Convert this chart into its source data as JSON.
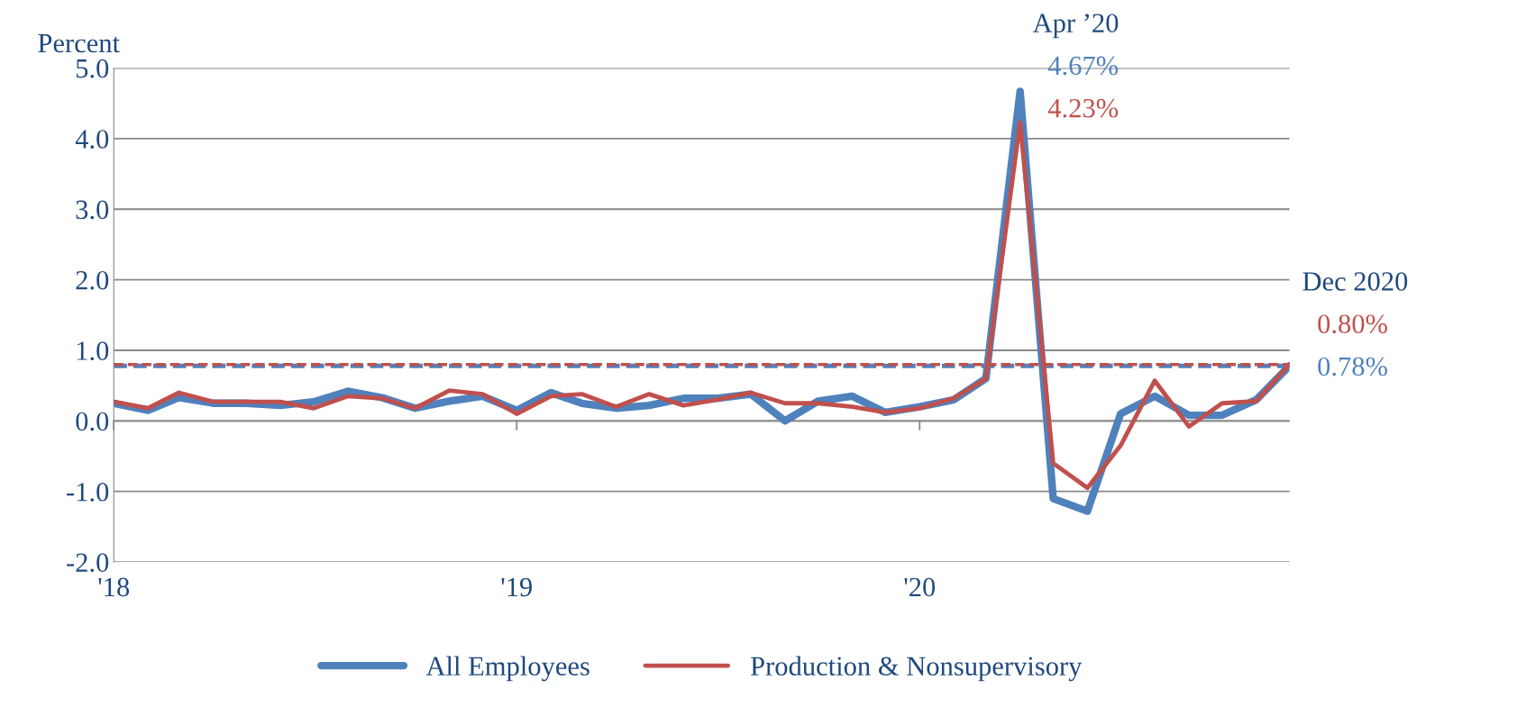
{
  "chart_data": {
    "type": "line",
    "ylabel": "Percent",
    "x": [
      "2018-01",
      "2018-02",
      "2018-03",
      "2018-04",
      "2018-05",
      "2018-06",
      "2018-07",
      "2018-08",
      "2018-09",
      "2018-10",
      "2018-11",
      "2018-12",
      "2019-01",
      "2019-02",
      "2019-03",
      "2019-04",
      "2019-05",
      "2019-06",
      "2019-07",
      "2019-08",
      "2019-09",
      "2019-10",
      "2019-11",
      "2019-12",
      "2020-01",
      "2020-02",
      "2020-03",
      "2020-04",
      "2020-05",
      "2020-06",
      "2020-07",
      "2020-08",
      "2020-09",
      "2020-10",
      "2020-11",
      "2020-12"
    ],
    "series": [
      {
        "name": "All Employees",
        "color": "#4f81bd",
        "values": [
          0.25,
          0.15,
          0.33,
          0.25,
          0.25,
          0.22,
          0.27,
          0.42,
          0.33,
          0.18,
          0.28,
          0.35,
          0.15,
          0.4,
          0.25,
          0.18,
          0.22,
          0.32,
          0.32,
          0.38,
          0.0,
          0.28,
          0.35,
          0.12,
          0.2,
          0.3,
          0.6,
          4.67,
          -1.1,
          -1.28,
          0.1,
          0.35,
          0.08,
          0.08,
          0.3,
          0.78
        ]
      },
      {
        "name": "Production & Nonsupervisory",
        "color": "#c0504d",
        "values": [
          0.27,
          0.18,
          0.4,
          0.27,
          0.27,
          0.27,
          0.18,
          0.35,
          0.32,
          0.18,
          0.43,
          0.38,
          0.1,
          0.35,
          0.38,
          0.2,
          0.38,
          0.22,
          0.3,
          0.4,
          0.25,
          0.25,
          0.2,
          0.12,
          0.18,
          0.32,
          0.6,
          4.23,
          -0.6,
          -0.95,
          -0.35,
          0.57,
          -0.08,
          0.25,
          0.28,
          0.8
        ]
      }
    ],
    "ref_lines": [
      {
        "axis": "y",
        "value": 0.78,
        "color": "#4f81bd",
        "line_style": "dashed"
      },
      {
        "axis": "y",
        "value": 0.8,
        "color": "#c0504d",
        "line_style": "dashed"
      }
    ],
    "annotations": [
      "Apr ’20",
      {
        "text": "4.67%",
        "x": "2020-04",
        "y": 4.67
      },
      {
        "text": "4.23%",
        "x": "2020-04",
        "y": 4.23
      },
      "Dec 2020",
      {
        "text": "0.80%",
        "x": "2020-12",
        "y": 0.8
      },
      {
        "text": "0.78%",
        "x": "2020-12",
        "y": 0.78
      }
    ],
    "xlim": [
      "2018-01",
      "2020-12"
    ],
    "xticks": [
      {
        "value": "2018-01",
        "label": "'18"
      },
      {
        "value": "2019-01",
        "label": "'19"
      },
      {
        "value": "2020-01",
        "label": "'20"
      }
    ],
    "ylim": [
      -2.0,
      5.0
    ],
    "yticks": [
      {
        "value": -2.0,
        "label": "-2.0"
      },
      {
        "value": -1.0,
        "label": "-1.0"
      },
      {
        "value": 0.0,
        "label": "0.0"
      },
      {
        "value": 1.0,
        "label": "1.0"
      },
      {
        "value": 2.0,
        "label": "2.0"
      },
      {
        "value": 3.0,
        "label": "3.0"
      },
      {
        "value": 4.0,
        "label": "4.0"
      },
      {
        "value": 5.0,
        "label": "5.0"
      }
    ],
    "grid": "y",
    "legend": "bottom",
    "marker": "none",
    "line_style": "solid"
  }
}
